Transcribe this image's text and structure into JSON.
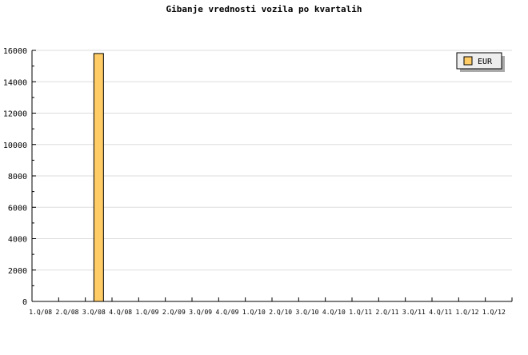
{
  "chart_data": {
    "type": "bar",
    "title": "Gibanje vrednosti vozila po kvartalih",
    "xlabel": "",
    "ylabel": "",
    "categories": [
      "1.Q/08",
      "2.Q/08",
      "3.Q/08",
      "4.Q/08",
      "1.Q/09",
      "2.Q/09",
      "3.Q/09",
      "4.Q/09",
      "1.Q/10",
      "2.Q/10",
      "3.Q/10",
      "4.Q/10",
      "1.Q/11",
      "2.Q/11",
      "3.Q/11",
      "4.Q/11",
      "1.Q/12",
      "1.Q/12"
    ],
    "series": [
      {
        "name": "EUR",
        "color": "#ffcc66",
        "values": [
          0,
          0,
          15800,
          0,
          0,
          0,
          0,
          0,
          0,
          0,
          0,
          0,
          0,
          0,
          0,
          0,
          0,
          0
        ]
      }
    ],
    "ylim": [
      0,
      16000
    ],
    "yticks": [
      0,
      2000,
      4000,
      6000,
      8000,
      10000,
      12000,
      14000,
      16000
    ],
    "grid": true,
    "legend": "top-right"
  }
}
